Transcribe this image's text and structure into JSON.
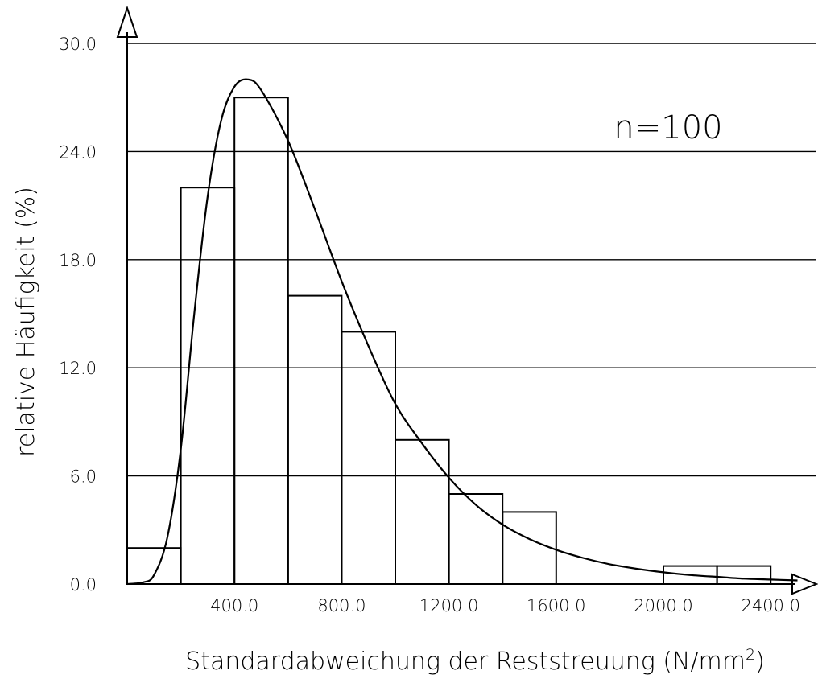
{
  "chart_data": {
    "type": "bar",
    "title": "",
    "xlabel": "Standardabweichung der Reststreuung (N/mm",
    "xlabel_sup": "2",
    "xlabel_close": ")",
    "ylabel": "relative Häufigkeit (%)",
    "annotation": "n=100",
    "xlim": [
      0,
      2520
    ],
    "ylim": [
      0,
      30
    ],
    "xticks": [
      400,
      800,
      1200,
      1600,
      2000,
      2400
    ],
    "xtick_labels": [
      "400.0",
      "800.0",
      "1200.0",
      "1600.0",
      "2000.0",
      "2400.0"
    ],
    "yticks": [
      0,
      6,
      12,
      18,
      24,
      30
    ],
    "ytick_labels": [
      "0.0",
      "6.0",
      "12.0",
      "18.0",
      "24.0",
      "30.0"
    ],
    "grid": "horizontal",
    "bins": [
      {
        "x0": 0,
        "x1": 200,
        "value": 2
      },
      {
        "x0": 200,
        "x1": 400,
        "value": 22
      },
      {
        "x0": 400,
        "x1": 600,
        "value": 27
      },
      {
        "x0": 600,
        "x1": 800,
        "value": 16
      },
      {
        "x0": 800,
        "x1": 1000,
        "value": 14
      },
      {
        "x0": 1000,
        "x1": 1200,
        "value": 8
      },
      {
        "x0": 1200,
        "x1": 1400,
        "value": 5
      },
      {
        "x0": 1400,
        "x1": 1600,
        "value": 4
      },
      {
        "x0": 1600,
        "x1": 1800,
        "value": 0
      },
      {
        "x0": 1800,
        "x1": 2000,
        "value": 0
      },
      {
        "x0": 2000,
        "x1": 2200,
        "value": 1
      },
      {
        "x0": 2200,
        "x1": 2400,
        "value": 1
      }
    ],
    "fit_curve": [
      [
        0,
        0
      ],
      [
        60,
        0.1
      ],
      [
        100,
        0.5
      ],
      [
        150,
        2.6
      ],
      [
        200,
        7.5
      ],
      [
        250,
        15.0
      ],
      [
        300,
        21.5
      ],
      [
        350,
        25.7
      ],
      [
        400,
        27.6
      ],
      [
        450,
        28.0
      ],
      [
        500,
        27.4
      ],
      [
        600,
        24.6
      ],
      [
        700,
        20.8
      ],
      [
        800,
        16.8
      ],
      [
        900,
        13.2
      ],
      [
        1000,
        10.0
      ],
      [
        1100,
        7.8
      ],
      [
        1200,
        5.9
      ],
      [
        1300,
        4.4
      ],
      [
        1400,
        3.3
      ],
      [
        1500,
        2.5
      ],
      [
        1600,
        1.9
      ],
      [
        1700,
        1.45
      ],
      [
        1800,
        1.1
      ],
      [
        1900,
        0.85
      ],
      [
        2000,
        0.65
      ],
      [
        2100,
        0.5
      ],
      [
        2200,
        0.4
      ],
      [
        2300,
        0.3
      ],
      [
        2400,
        0.25
      ],
      [
        2500,
        0.2
      ]
    ]
  }
}
